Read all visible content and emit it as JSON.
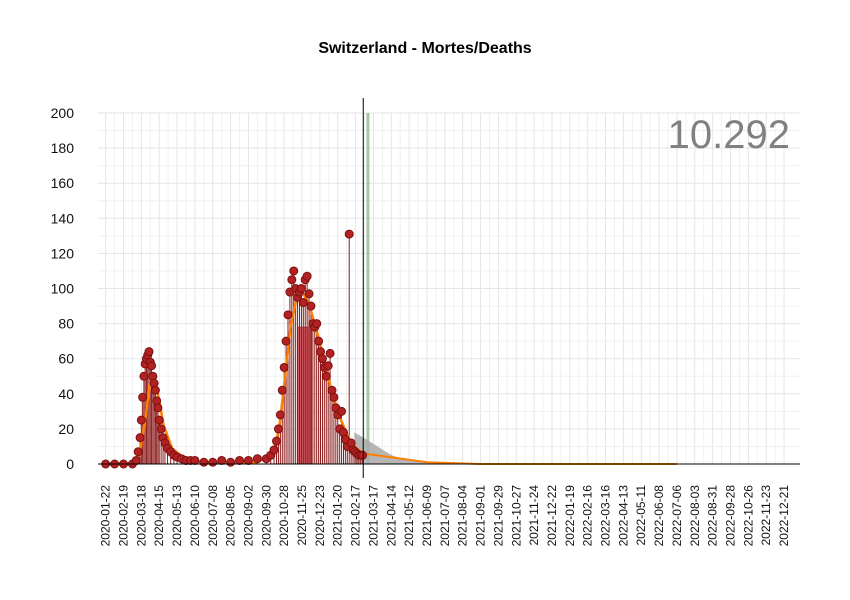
{
  "chart_data": {
    "type": "bar",
    "title": "Switzerland - Mortes/Deaths",
    "total_label": "10.292",
    "xlabel": "",
    "ylabel": "",
    "ylim": [
      0,
      200
    ],
    "yticks": [
      0,
      20,
      40,
      60,
      80,
      100,
      120,
      140,
      160,
      180,
      200
    ],
    "x_range": [
      "2020-01-10",
      "2023-01-15"
    ],
    "x_ticks": [
      "2020-01-22",
      "2020-02-19",
      "2020-03-18",
      "2020-04-15",
      "2020-05-13",
      "2020-06-10",
      "2020-07-08",
      "2020-08-05",
      "2020-09-02",
      "2020-09-30",
      "2020-10-28",
      "2020-11-25",
      "2020-12-23",
      "2021-01-20",
      "2021-02-17",
      "2021-03-17",
      "2021-04-14",
      "2021-05-12",
      "2021-06-09",
      "2021-07-07",
      "2021-08-04",
      "2021-09-01",
      "2021-09-29",
      "2021-10-27",
      "2021-11-24",
      "2021-12-22",
      "2022-01-19",
      "2022-02-16",
      "2022-03-16",
      "2022-04-13",
      "2022-05-11",
      "2022-06-08",
      "2022-07-06",
      "2022-08-03",
      "2022-08-31",
      "2022-09-28",
      "2022-10-26",
      "2022-11-23",
      "2022-12-21"
    ],
    "current_date": "2021-03-01",
    "highlight_band": {
      "start": "2021-03-06",
      "end": "2021-03-10",
      "color": "#8fbc8f"
    },
    "grid": true,
    "colors": {
      "points": "#b22222",
      "point_outline": "#7a1010",
      "bar_fill": "#d9606a",
      "fit_line": "#ff7f00",
      "projection": "#a9a9a9",
      "gridline": "#e5e5e5"
    },
    "series": [
      {
        "type": "scatter",
        "x": [
          "2020-01-22",
          "2020-02-05",
          "2020-02-19",
          "2020-03-04",
          "2020-03-10",
          "2020-03-13",
          "2020-03-16",
          "2020-03-18",
          "2020-03-20",
          "2020-03-22",
          "2020-03-24",
          "2020-03-26",
          "2020-03-28",
          "2020-03-30",
          "2020-04-01",
          "2020-04-03",
          "2020-04-05",
          "2020-04-07",
          "2020-04-09",
          "2020-04-11",
          "2020-04-13",
          "2020-04-15",
          "2020-04-18",
          "2020-04-21",
          "2020-04-24",
          "2020-04-28",
          "2020-05-03",
          "2020-05-08",
          "2020-05-13",
          "2020-05-20",
          "2020-05-27",
          "2020-06-03",
          "2020-06-10",
          "2020-06-24",
          "2020-07-08",
          "2020-07-22",
          "2020-08-05",
          "2020-08-19",
          "2020-09-02",
          "2020-09-16",
          "2020-09-30",
          "2020-10-07",
          "2020-10-12",
          "2020-10-16",
          "2020-10-19",
          "2020-10-22",
          "2020-10-25",
          "2020-10-28",
          "2020-10-31",
          "2020-11-03",
          "2020-11-06",
          "2020-11-09",
          "2020-11-12",
          "2020-11-15",
          "2020-11-18",
          "2020-11-21",
          "2020-11-24",
          "2020-11-27",
          "2020-11-30",
          "2020-12-03",
          "2020-12-06",
          "2020-12-09",
          "2020-12-12",
          "2020-12-15",
          "2020-12-18",
          "2020-12-21",
          "2020-12-24",
          "2020-12-27",
          "2020-12-30",
          "2021-01-02",
          "2021-01-05",
          "2021-01-08",
          "2021-01-11",
          "2021-01-14",
          "2021-01-17",
          "2021-01-20",
          "2021-01-23",
          "2021-01-26",
          "2021-01-29",
          "2021-02-01",
          "2021-02-04",
          "2021-02-07",
          "2021-02-10",
          "2021-02-13",
          "2021-02-16",
          "2021-02-19",
          "2021-02-22",
          "2021-02-25",
          "2021-02-28"
        ],
        "values": [
          0,
          0,
          0,
          0,
          2,
          7,
          15,
          25,
          38,
          50,
          57,
          60,
          62,
          64,
          58,
          56,
          50,
          46,
          42,
          36,
          32,
          25,
          20,
          15,
          12,
          9,
          7,
          5,
          4,
          3,
          2,
          2,
          2,
          1,
          1,
          2,
          1,
          2,
          2,
          3,
          3,
          5,
          8,
          13,
          20,
          28,
          42,
          55,
          70,
          85,
          98,
          105,
          110,
          100,
          95,
          98,
          100,
          92,
          105,
          107,
          97,
          90,
          80,
          78,
          80,
          70,
          64,
          60,
          55,
          50,
          56,
          63,
          42,
          38,
          32,
          28,
          20,
          30,
          18,
          14,
          10,
          131,
          12,
          8,
          7,
          6,
          5,
          5,
          5
        ]
      },
      {
        "type": "line",
        "name": "",
        "x": [
          "2020-01-22",
          "2020-03-04",
          "2020-03-15",
          "2020-03-25",
          "2020-04-02",
          "2020-04-12",
          "2020-04-22",
          "2020-05-05",
          "2020-05-25",
          "2020-06-20",
          "2020-08-01",
          "2020-09-15",
          "2020-10-10",
          "2020-10-20",
          "2020-10-28",
          "2020-11-07",
          "2020-11-17",
          "2020-11-25",
          "2020-12-05",
          "2020-12-15",
          "2020-12-28",
          "2021-01-10",
          "2021-01-25",
          "2021-02-10",
          "2021-02-28"
        ],
        "values": [
          0,
          0,
          5,
          28,
          50,
          42,
          22,
          9,
          3,
          1,
          1,
          1,
          5,
          20,
          45,
          78,
          95,
          98,
          92,
          80,
          62,
          42,
          25,
          12,
          6
        ]
      },
      {
        "type": "area",
        "name": "",
        "x": [
          "2021-02-15",
          "2021-03-01",
          "2021-03-15",
          "2021-04-01",
          "2021-04-15",
          "2021-05-01",
          "2021-05-20",
          "2021-06-10",
          "2021-07-01"
        ],
        "values": [
          18,
          15,
          12,
          8,
          5,
          3,
          1.5,
          0.5,
          0
        ]
      },
      {
        "type": "line",
        "name": "",
        "x": [
          "2021-03-01",
          "2021-06-09",
          "2021-09-01",
          "2022-01-01",
          "2022-04-13",
          "2022-07-06"
        ],
        "values": [
          6,
          1,
          0,
          0,
          0,
          0
        ]
      }
    ],
    "bars": [
      {
        "start": "2020-11-18",
        "end": "2020-12-10",
        "value": 78
      }
    ]
  }
}
